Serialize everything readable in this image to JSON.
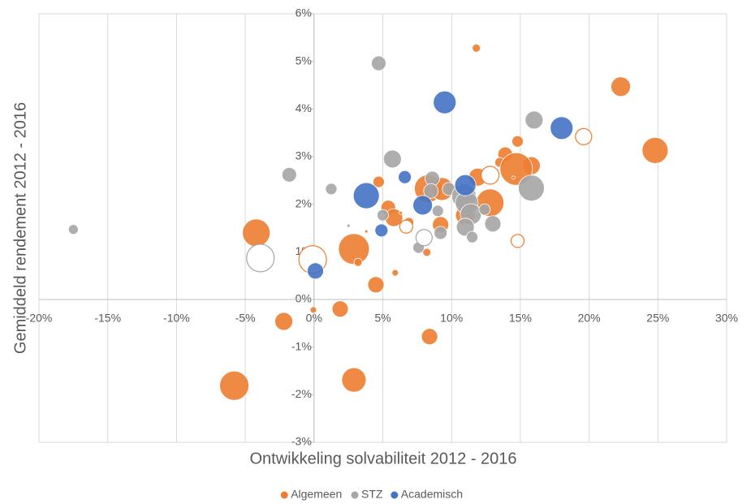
{
  "chart_data": {
    "type": "bubble",
    "x_label": "Ontwikkeling solvabiliteit 2012 - 2016",
    "y_label": "Gemiddeld rendement 2012 - 2016",
    "xlim": [
      -20,
      30
    ],
    "ylim": [
      -3,
      6
    ],
    "xticks": [
      {
        "value": -20,
        "label": "-20%"
      },
      {
        "value": -15,
        "label": "-15%"
      },
      {
        "value": -10,
        "label": "-10%"
      },
      {
        "value": -5,
        "label": "-5%"
      },
      {
        "value": 0,
        "label": "0%"
      },
      {
        "value": 5,
        "label": "5%"
      },
      {
        "value": 10,
        "label": "10%"
      },
      {
        "value": 15,
        "label": "15%"
      },
      {
        "value": 20,
        "label": "20%"
      },
      {
        "value": 25,
        "label": "25%"
      },
      {
        "value": 30,
        "label": "30%"
      }
    ],
    "yticks": [
      {
        "value": -3,
        "label": "-3%"
      },
      {
        "value": -2,
        "label": "-2%"
      },
      {
        "value": -1,
        "label": "-1%"
      },
      {
        "value": 0,
        "label": "0%"
      },
      {
        "value": 1,
        "label": "1%"
      },
      {
        "value": 2,
        "label": "2%"
      },
      {
        "value": 3,
        "label": "3%"
      },
      {
        "value": 4,
        "label": "4%"
      },
      {
        "value": 5,
        "label": "5%"
      },
      {
        "value": 6,
        "label": "6%"
      }
    ],
    "grid": true,
    "legend": "bottom",
    "series": [
      {
        "name": "Algemeen",
        "color": "#ed7d31",
        "x": [
          11.8,
          22.3,
          24.8,
          14.8,
          13.9,
          13.5,
          11.9,
          15.8,
          14.7,
          14.5,
          12.8,
          11.0,
          8.3,
          9.3,
          9.2,
          6.9,
          4.7,
          5.4,
          5.8,
          6.3,
          -4.2,
          2.9,
          3.2,
          3.8,
          5.9,
          8.2,
          4.5,
          -0.05,
          1.9,
          -2.2,
          8.4,
          2.9,
          -5.8,
          19.6,
          12.8,
          6.7,
          -0.1,
          14.8
        ],
        "values": [
          5.28,
          4.47,
          3.13,
          3.32,
          3.05,
          2.88,
          2.57,
          2.81,
          2.74,
          2.56,
          2.03,
          1.77,
          2.33,
          2.32,
          1.57,
          1.62,
          2.47,
          1.93,
          1.72,
          1.82,
          1.4,
          1.06,
          0.78,
          1.43,
          0.56,
          0.99,
          0.31,
          -0.22,
          -0.2,
          -0.46,
          -0.78,
          -1.69,
          -1.81,
          3.42,
          2.61,
          1.53,
          0.84,
          1.23
        ],
        "sizes": [
          5,
          12,
          16,
          7,
          9,
          6,
          11,
          11,
          20,
          2,
          17,
          12,
          17,
          14,
          10,
          6,
          7,
          9,
          11,
          2,
          17,
          19,
          5,
          2,
          4,
          5,
          10,
          4,
          10,
          11,
          10,
          15,
          18,
          10,
          11,
          8,
          17,
          8
        ],
        "hollow": [
          false,
          false,
          false,
          false,
          false,
          false,
          false,
          false,
          false,
          false,
          false,
          false,
          false,
          false,
          false,
          false,
          false,
          false,
          false,
          false,
          false,
          false,
          false,
          false,
          false,
          false,
          false,
          false,
          false,
          false,
          false,
          false,
          false,
          true,
          true,
          true,
          true,
          true
        ]
      },
      {
        "name": "STZ",
        "color": "#a5a5a5",
        "x": [
          -17.5,
          -1.8,
          1.25,
          4.7,
          5.7,
          16.0,
          15.8,
          8.6,
          8.5,
          9.0,
          9.8,
          10.9,
          11.1,
          11.4,
          12.4,
          13.0,
          11.0,
          11.5,
          9.2,
          7.6,
          5.0,
          2.5,
          -3.9,
          8.0
        ],
        "values": [
          1.47,
          2.62,
          2.32,
          4.96,
          2.95,
          3.77,
          2.34,
          2.54,
          2.28,
          1.86,
          2.32,
          2.17,
          2.03,
          1.79,
          1.89,
          1.59,
          1.52,
          1.31,
          1.4,
          1.09,
          1.77,
          1.55,
          0.87,
          1.3
        ],
        "sizes": [
          6,
          9,
          7,
          9,
          11,
          11,
          16,
          9,
          9,
          7,
          8,
          15,
          14,
          13,
          7,
          10,
          11,
          7,
          8,
          7,
          7,
          2,
          17,
          10
        ],
        "hollow": [
          false,
          false,
          false,
          false,
          false,
          false,
          false,
          false,
          false,
          false,
          false,
          false,
          false,
          false,
          false,
          false,
          false,
          false,
          false,
          false,
          false,
          false,
          true,
          true
        ]
      },
      {
        "name": "Academisch",
        "color": "#4472c4",
        "x": [
          9.5,
          18.0,
          11.0,
          3.8,
          6.6,
          7.9,
          4.9,
          0.1
        ],
        "values": [
          4.14,
          3.6,
          2.4,
          2.18,
          2.57,
          1.98,
          1.45,
          0.6
        ],
        "sizes": [
          14,
          14,
          13,
          16,
          8,
          12,
          8,
          10
        ],
        "hollow": [
          false,
          false,
          false,
          false,
          false,
          false,
          false,
          false
        ]
      }
    ]
  }
}
